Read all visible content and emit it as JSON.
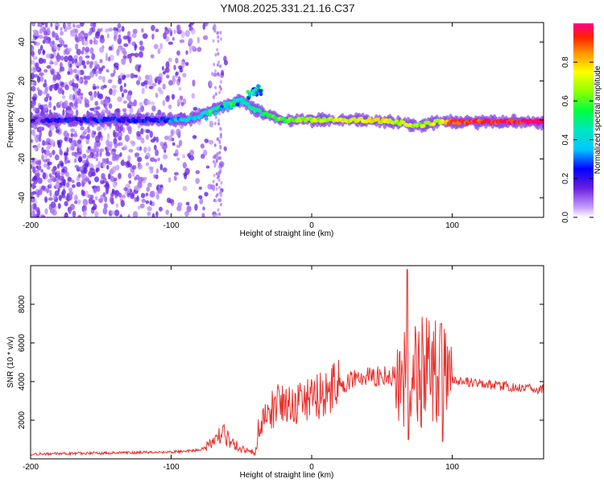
{
  "title": "YM08.2025.331.21.16.C37",
  "chart_data": [
    {
      "type": "heatmap",
      "xlabel": "Height of straight line (km)",
      "ylabel": "Frequency (Hz)",
      "xlim": [
        -200,
        165
      ],
      "ylim": [
        -50,
        50
      ],
      "xticks": [
        -200,
        -100,
        0,
        100
      ],
      "yticks": [
        -40,
        -20,
        0,
        20,
        40
      ],
      "colorbar": {
        "label": "Normalized spectral amplitude",
        "ticks": [
          "0.0",
          "0.2",
          "0.4",
          "0.6",
          "0.8"
        ],
        "range": [
          0,
          1
        ],
        "colormap": "rainbow"
      },
      "ridge": [
        {
          "x": -200,
          "f": 0,
          "amp": 0.12
        },
        {
          "x": -180,
          "f": 0,
          "amp": 0.2
        },
        {
          "x": -160,
          "f": 0,
          "amp": 0.22
        },
        {
          "x": -140,
          "f": 0,
          "amp": 0.25
        },
        {
          "x": -120,
          "f": 0,
          "amp": 0.2
        },
        {
          "x": -100,
          "f": 0,
          "amp": 0.28
        },
        {
          "x": -90,
          "f": 0,
          "amp": 0.38
        },
        {
          "x": -80,
          "f": 2,
          "amp": 0.4
        },
        {
          "x": -70,
          "f": 5,
          "amp": 0.45
        },
        {
          "x": -60,
          "f": 8,
          "amp": 0.5
        },
        {
          "x": -50,
          "f": 10,
          "amp": 0.45
        },
        {
          "x": -40,
          "f": 5,
          "amp": 0.5
        },
        {
          "x": -30,
          "f": 2,
          "amp": 0.55
        },
        {
          "x": -20,
          "f": 0,
          "amp": 0.6
        },
        {
          "x": 0,
          "f": 0,
          "amp": 0.65
        },
        {
          "x": 20,
          "f": 0,
          "amp": 0.7
        },
        {
          "x": 40,
          "f": 0,
          "amp": 0.75
        },
        {
          "x": 60,
          "f": -1,
          "amp": 0.7
        },
        {
          "x": 75,
          "f": -3,
          "amp": 0.65
        },
        {
          "x": 90,
          "f": -1,
          "amp": 0.7
        },
        {
          "x": 100,
          "f": -1,
          "amp": 0.9
        },
        {
          "x": 130,
          "f": -1,
          "amp": 0.95
        },
        {
          "x": 165,
          "f": -1,
          "amp": 0.95
        }
      ]
    },
    {
      "type": "line",
      "xlabel": "Height of straight line (km)",
      "ylabel": "SNR (10 * v/v)",
      "xlim": [
        -200,
        165
      ],
      "ylim": [
        0,
        10000
      ],
      "xticks": [
        -200,
        -100,
        0,
        100
      ],
      "yticks": [
        2000,
        4000,
        6000,
        8000
      ],
      "color": "#e8302c",
      "envelope": [
        {
          "x": -200,
          "y": 250
        },
        {
          "x": -150,
          "y": 300
        },
        {
          "x": -100,
          "y": 350
        },
        {
          "x": -80,
          "y": 450
        },
        {
          "x": -70,
          "y": 800
        },
        {
          "x": -62,
          "y": 1400
        },
        {
          "x": -58,
          "y": 800
        },
        {
          "x": -45,
          "y": 400
        },
        {
          "x": -40,
          "y": 300
        },
        {
          "x": -38,
          "y": 1500
        },
        {
          "x": -30,
          "y": 2500
        },
        {
          "x": -20,
          "y": 3000
        },
        {
          "x": -10,
          "y": 2800
        },
        {
          "x": 0,
          "y": 3000
        },
        {
          "x": 10,
          "y": 3400
        },
        {
          "x": 20,
          "y": 3800
        },
        {
          "x": 30,
          "y": 4100
        },
        {
          "x": 40,
          "y": 4200
        },
        {
          "x": 50,
          "y": 4300
        },
        {
          "x": 60,
          "y": 4300
        },
        {
          "x": 70,
          "y": 4200
        },
        {
          "x": 80,
          "y": 4500
        },
        {
          "x": 90,
          "y": 4400
        },
        {
          "x": 100,
          "y": 4000
        },
        {
          "x": 110,
          "y": 4000
        },
        {
          "x": 130,
          "y": 3800
        },
        {
          "x": 150,
          "y": 3700
        },
        {
          "x": 165,
          "y": 3600
        }
      ],
      "peaks": [
        {
          "x": 68,
          "y": 9800
        },
        {
          "x": 69,
          "y": 1000
        },
        {
          "x": 92,
          "y": 7000
        },
        {
          "x": 93,
          "y": 900
        }
      ]
    }
  ]
}
